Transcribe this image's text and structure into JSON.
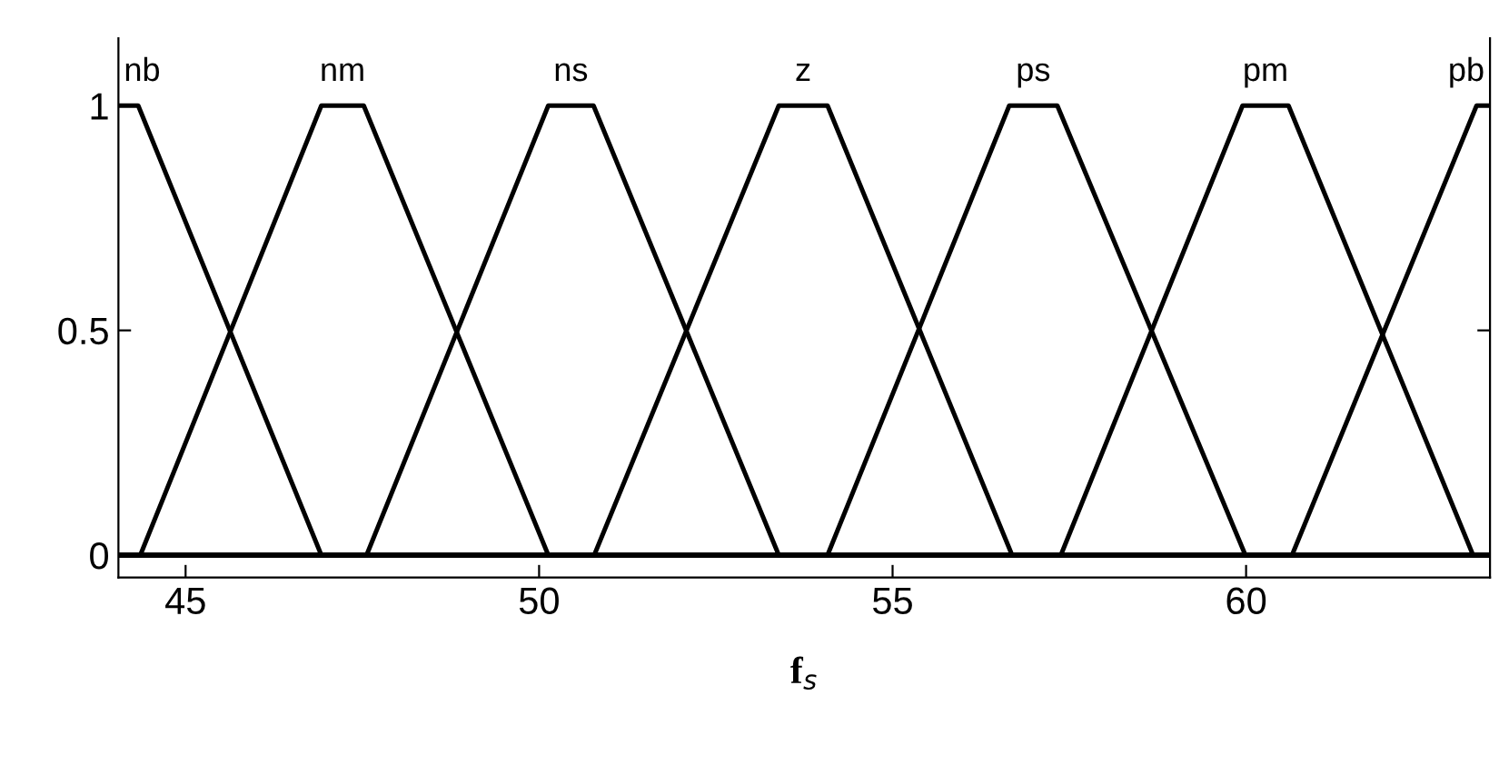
{
  "chart_data": {
    "type": "line",
    "xlabel": "f$_{s}$",
    "xlim": [
      44.05,
      63.45
    ],
    "ylim": [
      -0.05,
      1.15
    ],
    "xticks": [
      45,
      50,
      55,
      60
    ],
    "yticks": [
      0,
      0.5,
      1
    ],
    "grid": false,
    "legend": false,
    "marker": "none",
    "line_style": "solid",
    "series": [
      {
        "name": "nb",
        "color": "#000000",
        "x": [
          44.05,
          44.33,
          46.92,
          63.45
        ],
        "values": [
          1,
          1,
          0,
          0
        ]
      },
      {
        "name": "nm",
        "color": "#000000",
        "x": [
          44.05,
          44.36,
          46.92,
          47.52,
          50.13,
          63.45
        ],
        "values": [
          0,
          0,
          1,
          1,
          0,
          0
        ]
      },
      {
        "name": "ns",
        "color": "#000000",
        "x": [
          44.05,
          47.56,
          50.13,
          50.77,
          53.39,
          63.45
        ],
        "values": [
          0,
          0,
          1,
          1,
          0,
          0
        ]
      },
      {
        "name": "z",
        "color": "#000000",
        "x": [
          44.05,
          50.78,
          53.39,
          54.08,
          56.69,
          63.45
        ],
        "values": [
          0,
          0,
          1,
          1,
          0,
          0
        ]
      },
      {
        "name": "ps",
        "color": "#000000",
        "x": [
          44.05,
          54.08,
          56.65,
          57.33,
          59.99,
          63.45
        ],
        "values": [
          0,
          0,
          1,
          1,
          0,
          0
        ]
      },
      {
        "name": "pm",
        "color": "#000000",
        "x": [
          44.05,
          57.38,
          59.95,
          60.6,
          63.21,
          63.45
        ],
        "values": [
          0,
          0,
          1,
          1,
          0,
          0
        ]
      },
      {
        "name": "pb",
        "color": "#000000",
        "x": [
          44.05,
          60.65,
          63.26,
          63.45
        ],
        "values": [
          0,
          0,
          1,
          1
        ]
      }
    ]
  }
}
